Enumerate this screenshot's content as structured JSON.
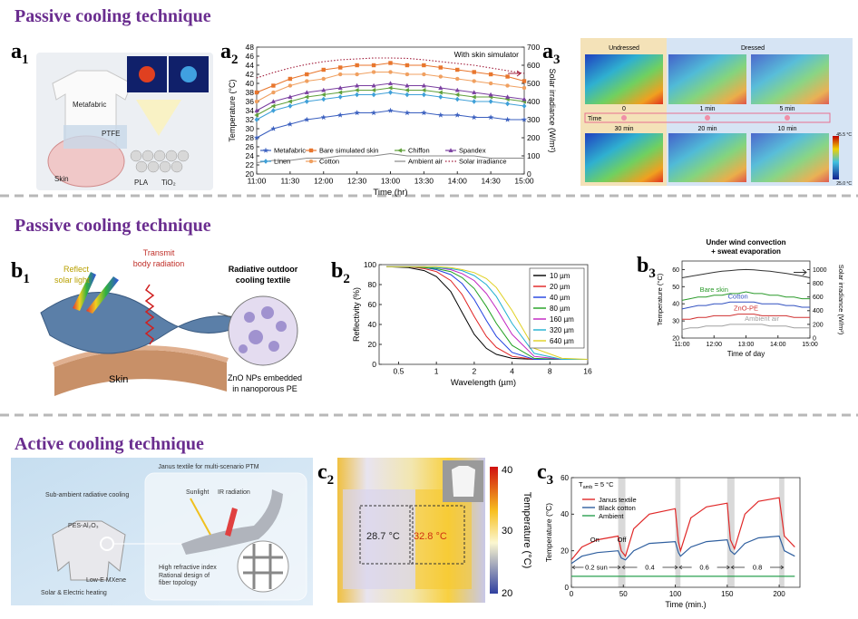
{
  "headings": [
    "Passive cooling technique",
    "Passive cooling technique",
    "Active cooling technique"
  ],
  "panel_labels": [
    {
      "letter": "a",
      "sub": "1"
    },
    {
      "letter": "a",
      "sub": "2"
    },
    {
      "letter": "a",
      "sub": "3"
    },
    {
      "letter": "b",
      "sub": "1"
    },
    {
      "letter": "b",
      "sub": "2"
    },
    {
      "letter": "b",
      "sub": "3"
    },
    {
      "letter": "c",
      "sub": "1"
    },
    {
      "letter": "c",
      "sub": "2"
    },
    {
      "letter": "c",
      "sub": "3"
    }
  ],
  "a1": {
    "metafabric": "Metafabric",
    "skin": "Skin",
    "ptfe": "PTFE",
    "pla": "PLA",
    "tio2": "TiO₂"
  },
  "a3": {
    "undressed": "Undressed",
    "dressed": "Dressed",
    "time": "Time",
    "times_top": [
      "0",
      "1 min",
      "5 min"
    ],
    "times_bottom": [
      "30 min",
      "20 min",
      "10 min"
    ],
    "scale": [
      "45.5 °C",
      "25.0 °C"
    ]
  },
  "b1": {
    "reflect": [
      "Reflect",
      "solar light"
    ],
    "transmit": [
      "Transmit",
      "body radiation"
    ],
    "textile": [
      "Radiative outdoor",
      "cooling textile"
    ],
    "skin": "Skin",
    "zno": [
      "ZnO NPs embedded",
      "in nanoporous PE"
    ]
  },
  "c1": {
    "title": "Janus textile for multi-scenario PTM",
    "cooling": "Sub-ambient radiative cooling",
    "pes": "PES-Al₂O₃",
    "sunlight": "Sunlight",
    "ir": "IR radiation",
    "lowe": "Low-E MXene",
    "heating": "Solar & Electric heating",
    "notes": [
      "High refractive index",
      "Rational design of",
      "fiber topology"
    ]
  },
  "c2": {
    "spots": [
      "28.7 °C",
      "32.8 °C"
    ],
    "colorbar_label": "Temperature (°C)",
    "colorbar_ticks": [
      "40",
      "30",
      "20"
    ]
  },
  "chart_data": [
    {
      "type": "line",
      "xlabel": "Time (hr)",
      "ylabel": "Temperature (°C)",
      "y2label": "Solar irradiance (W/m²)",
      "annotation": "With skin simulator",
      "legend": "bottom",
      "x": [
        11,
        11.25,
        11.5,
        11.75,
        12,
        12.25,
        12.5,
        12.75,
        13,
        13.25,
        13.5,
        13.75,
        14,
        14.25,
        14.5,
        14.75,
        15
      ],
      "xlim": [
        11,
        15
      ],
      "xticks": [
        {
          "value": 11,
          "label": "11:00"
        },
        {
          "value": 11.5,
          "label": "11:30"
        },
        {
          "value": 12,
          "label": "12:00"
        },
        {
          "value": 12.5,
          "label": "12:30"
        },
        {
          "value": 13,
          "label": "13:00"
        },
        {
          "value": 13.5,
          "label": "13:30"
        },
        {
          "value": 14,
          "label": "14:00"
        },
        {
          "value": 14.5,
          "label": "14:30"
        },
        {
          "value": 15,
          "label": "15:00"
        }
      ],
      "ylim": [
        20,
        48
      ],
      "yticks": [
        20,
        22,
        24,
        26,
        28,
        30,
        32,
        34,
        36,
        38,
        40,
        42,
        44,
        46,
        48
      ],
      "y2lim": [
        0,
        700
      ],
      "y2ticks": [
        0,
        100,
        200,
        300,
        400,
        500,
        600,
        700
      ],
      "series": [
        {
          "name": "Metafabric",
          "color": "#3a5fbf",
          "marker": "star",
          "values": [
            28,
            30,
            31,
            32,
            32.5,
            33,
            33.5,
            33.5,
            34,
            33.5,
            33.5,
            33,
            33,
            32.5,
            32.5,
            32,
            32
          ]
        },
        {
          "name": "Bare simulated skin",
          "color": "#e8762d",
          "marker": "square",
          "values": [
            38,
            39.5,
            41,
            42,
            43,
            43.5,
            44,
            44,
            44.5,
            44,
            44,
            43.5,
            43,
            42.5,
            42,
            41.5,
            40.5
          ]
        },
        {
          "name": "Chiffon",
          "color": "#5fa03a",
          "marker": "triangle-left",
          "values": [
            33,
            35,
            36,
            37,
            37.5,
            38,
            38.5,
            38.5,
            39,
            38.5,
            38.5,
            38,
            37.5,
            37,
            37,
            36.5,
            36
          ]
        },
        {
          "name": "Spandex",
          "color": "#7a3fa0",
          "marker": "triangle",
          "values": [
            34,
            36,
            37,
            38,
            38.5,
            39,
            39.5,
            39.5,
            40,
            39.5,
            39.5,
            39,
            38.5,
            38,
            37.5,
            37,
            36.5
          ]
        },
        {
          "name": "Linen",
          "color": "#3fa0d8",
          "marker": "diamond",
          "values": [
            32,
            34,
            35,
            36,
            36.5,
            37,
            37.5,
            37.5,
            38,
            37.5,
            37.5,
            37,
            36.5,
            36,
            36,
            35.5,
            35
          ]
        },
        {
          "name": "Cotton",
          "color": "#f0a060",
          "marker": "circle",
          "values": [
            36,
            38,
            39.5,
            40.5,
            41,
            42,
            42,
            42.5,
            42.5,
            42,
            42,
            41.5,
            41,
            40.5,
            40,
            39.5,
            39
          ]
        },
        {
          "name": "Ambient air",
          "color": "#888888",
          "values": [
            22.5,
            23,
            23,
            23.5,
            23.5,
            24,
            24,
            24,
            24.5,
            24,
            24,
            24,
            24,
            24,
            23.5,
            23.5,
            23.5
          ]
        },
        {
          "name": "Solar irradiance",
          "color": "#a11d3b",
          "axis": "y2",
          "line_style": "dotted",
          "values": [
            530,
            560,
            585,
            605,
            620,
            630,
            635,
            640,
            640,
            638,
            630,
            620,
            610,
            600,
            585,
            570,
            555
          ]
        }
      ]
    },
    {
      "type": "line",
      "xscale": "log",
      "xlabel": "Wavelength (µm)",
      "ylabel": "Reflectivity (%)",
      "legend": "top-right",
      "x": [
        0.4,
        0.6,
        0.8,
        1,
        1.3,
        1.6,
        2,
        2.5,
        3,
        4,
        6,
        10,
        16
      ],
      "xlim": [
        0.35,
        16
      ],
      "xticks": [
        0.5,
        1,
        2,
        4,
        8,
        16
      ],
      "ylim": [
        0,
        100
      ],
      "yticks": [
        0,
        20,
        40,
        60,
        80,
        100
      ],
      "series": [
        {
          "name": "10 µm",
          "color": "#000000",
          "values": [
            98,
            97,
            94,
            88,
            73,
            52,
            30,
            16,
            10,
            6,
            5,
            5,
            5
          ]
        },
        {
          "name": "20 µm",
          "color": "#e02020",
          "values": [
            98,
            98,
            96,
            93,
            84,
            70,
            48,
            28,
            17,
            8,
            5,
            5,
            5
          ]
        },
        {
          "name": "40 µm",
          "color": "#2040e0",
          "values": [
            98,
            98,
            97,
            95,
            90,
            81,
            65,
            44,
            28,
            12,
            5,
            5,
            5
          ]
        },
        {
          "name": "80 µm",
          "color": "#20a020",
          "values": [
            98,
            98,
            97,
            96,
            93,
            87,
            76,
            58,
            41,
            19,
            6,
            5,
            5
          ]
        },
        {
          "name": "160 µm",
          "color": "#c020c0",
          "values": [
            98,
            98,
            98,
            97,
            95,
            91,
            84,
            71,
            56,
            30,
            8,
            5,
            5
          ]
        },
        {
          "name": "320 µm",
          "color": "#20b0d0",
          "values": [
            98,
            98,
            98,
            97,
            96,
            94,
            89,
            80,
            68,
            41,
            11,
            5,
            5
          ]
        },
        {
          "name": "640 µm",
          "color": "#e0d020",
          "values": [
            98,
            98,
            98,
            98,
            97,
            95,
            92,
            86,
            77,
            54,
            16,
            6,
            5
          ]
        }
      ]
    },
    {
      "type": "line",
      "title": [
        "Under wind convection",
        "+ sweat evaporation"
      ],
      "xlabel": "Time of day",
      "ylabel": "Temperature (°C)",
      "y2label": "Solar irradiance (W/m²)",
      "legend": "inline",
      "x": [
        11,
        11.25,
        11.5,
        11.75,
        12,
        12.25,
        12.5,
        12.75,
        13,
        13.25,
        13.5,
        13.75,
        14,
        14.25,
        14.5,
        14.75,
        15
      ],
      "xlim": [
        11,
        15
      ],
      "xticks": [
        {
          "value": 11,
          "label": "11:00"
        },
        {
          "value": 12,
          "label": "12:00"
        },
        {
          "value": 13,
          "label": "13:00"
        },
        {
          "value": 14,
          "label": "14:00"
        },
        {
          "value": 15,
          "label": "15:00"
        }
      ],
      "ylim": [
        20,
        65
      ],
      "yticks": [
        20,
        30,
        40,
        50,
        60
      ],
      "y2lim": [
        0,
        1125
      ],
      "y2ticks": [
        0,
        200,
        400,
        600,
        800,
        1000
      ],
      "series": [
        {
          "name": "Bare skin",
          "color": "#2a9a2a",
          "values": [
            42,
            43,
            44,
            44,
            45,
            45,
            46,
            46,
            47,
            46,
            46,
            45,
            45,
            44,
            44,
            43,
            43
          ]
        },
        {
          "name": "Cotton",
          "color": "#3050c0",
          "values": [
            37,
            38,
            39,
            39,
            40,
            40,
            41,
            41,
            41,
            41,
            40,
            40,
            40,
            39,
            39,
            38,
            38
          ]
        },
        {
          "name": "ZnO-PE",
          "color": "#d03030",
          "values": [
            31,
            31,
            32,
            32,
            33,
            33,
            33,
            34,
            34,
            34,
            33,
            33,
            33,
            33,
            32,
            32,
            32
          ]
        },
        {
          "name": "Ambient air",
          "color": "#a0a0a0",
          "values": [
            25,
            26,
            26,
            27,
            27,
            27,
            28,
            28,
            28,
            28,
            28,
            27,
            27,
            27,
            26,
            26,
            26
          ]
        },
        {
          "color": "#333333",
          "axis": "y2",
          "values": [
            880,
            900,
            920,
            940,
            960,
            975,
            985,
            995,
            1000,
            995,
            985,
            975,
            960,
            945,
            925,
            905,
            880
          ]
        }
      ]
    },
    {
      "type": "line",
      "xlabel": "Time (min.)",
      "ylabel": "Temperature (°C)",
      "legend": "top-left",
      "annotation": {
        "text": "T",
        "sub": "amb",
        "rest": " = 5 °C"
      },
      "switch_labels": [
        "On",
        "Off"
      ],
      "phases": [
        {
          "label": "0.2 sun",
          "from": 0,
          "to": 48
        },
        {
          "label": "0.4",
          "from": 48,
          "to": 103
        },
        {
          "label": "0.6",
          "from": 103,
          "to": 153
        },
        {
          "label": "0.8",
          "from": 153,
          "to": 205
        }
      ],
      "shaded": [
        [
          45,
          52
        ],
        [
          100,
          105
        ],
        [
          150,
          157
        ],
        [
          200,
          205
        ]
      ],
      "shade_color": "#d9d9d9",
      "x": [
        0,
        10,
        25,
        45,
        48,
        52,
        60,
        75,
        100,
        103,
        105,
        115,
        130,
        150,
        153,
        157,
        167,
        180,
        200,
        205,
        215
      ],
      "xlim": [
        0,
        220
      ],
      "xticks": [
        0,
        50,
        100,
        150,
        200
      ],
      "ylim": [
        0,
        60
      ],
      "yticks": [
        0,
        20,
        40,
        60
      ],
      "series": [
        {
          "name": "Janus textile",
          "color": "#e02828",
          "values": [
            15,
            22,
            26,
            28,
            20,
            17,
            32,
            40,
            43,
            25,
            20,
            38,
            44,
            46,
            26,
            21,
            40,
            47,
            49,
            28,
            22
          ]
        },
        {
          "name": "Black cotton",
          "color": "#2f5f9f",
          "values": [
            13,
            17,
            19,
            20,
            16,
            15,
            20,
            24,
            25,
            19,
            17,
            22,
            25,
            26,
            20,
            18,
            24,
            27,
            28,
            20,
            17
          ]
        },
        {
          "name": "Ambient",
          "color": "#2aa050",
          "values": [
            6,
            6,
            6,
            6,
            6,
            6,
            6,
            6,
            6,
            6,
            6,
            6,
            6,
            6,
            6,
            6,
            6,
            6,
            6,
            6,
            6
          ]
        }
      ]
    }
  ]
}
